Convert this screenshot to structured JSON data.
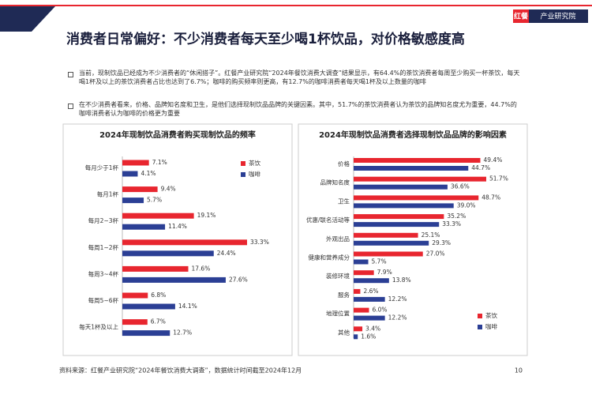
{
  "header": {
    "title": "消费者日常偏好：不少消费者每天至少喝1杯饮品，对价格敏感度高",
    "logo_mark": "红餐",
    "logo_text": "产业研究院"
  },
  "bullets": [
    "当前，现制饮品已经成为不少消费者的“休闲搭子”。红餐产业研究院“2024年餐饮消费大调查”结果显示，有64.4%的茶饮消费者每周至少购买一杯茶饮，每天喝1杯及以上的茶饮消费者占比也达到了6.7%；咖啡的购买频率则更高，有12.7%的咖啡消费者每天喝1杯及以上数量的咖啡",
    "在不少消费者看来，价格、品牌知名度和卫生，是他们选择现制饮品品牌的关键因素。其中，51.7%的茶饮消费者认为茶饮的品牌知名度尤为重要，44.7%的咖啡消费者认为咖啡的价格更为重要"
  ],
  "chart_data": [
    {
      "type": "hbar",
      "title": "2024年现制饮品消费者购买现制饮品的频率",
      "categories": [
        "每月少于1杯",
        "每月1杯",
        "每月2~3杯",
        "每周1~2杯",
        "每周3~4杯",
        "每周5~6杯",
        "每天1杯及以上"
      ],
      "series": [
        {
          "name": "茶饮",
          "color": "#e8262f",
          "values": [
            7.1,
            9.4,
            19.1,
            33.3,
            17.6,
            6.8,
            6.7
          ],
          "value_labels": [
            "7.1%",
            "9.4%",
            "19.1%",
            "33.3%",
            "17.6%",
            "6.8%",
            "6.7%"
          ]
        },
        {
          "name": "咖啡",
          "color": "#2b3f95",
          "values": [
            4.1,
            5.7,
            11.4,
            24.4,
            27.6,
            14.1,
            12.7
          ],
          "value_labels": [
            "4.1%",
            "5.7%",
            "11.4%",
            "24.4%",
            "27.6%",
            "14.1%",
            "12.7%"
          ]
        }
      ],
      "legend": "upper-right"
    },
    {
      "type": "hbar",
      "title": "2024年现制饮品消费者选择现制饮品品牌的影响因素",
      "categories": [
        "价格",
        "品牌知名度",
        "卫生",
        "优惠/联名活动等",
        "外观出品",
        "健康和营养成分",
        "装修环境",
        "服务",
        "地理位置",
        "其他"
      ],
      "series": [
        {
          "name": "茶饮",
          "color": "#e8262f",
          "values": [
            49.4,
            51.7,
            48.7,
            35.2,
            25.1,
            27.0,
            7.9,
            2.6,
            6.0,
            3.4
          ],
          "value_labels": [
            "49.4%",
            "51.7%",
            "48.7%",
            "35.2%",
            "25.1%",
            "27.0%",
            "7.9%",
            "2.6%",
            "6.0%",
            "3.4%"
          ]
        },
        {
          "name": "咖啡",
          "color": "#2b3f95",
          "values": [
            44.7,
            36.6,
            39.0,
            33.3,
            29.3,
            5.7,
            13.8,
            12.2,
            12.2,
            1.6
          ],
          "value_labels": [
            "44.7%",
            "36.6%",
            "39.0%",
            "33.3%",
            "29.3%",
            "5.7%",
            "13.8%",
            "12.2%",
            "12.2%",
            "1.6%"
          ]
        }
      ],
      "legend": "lower-right"
    }
  ],
  "footer": {
    "source": "资料来源：红餐产业研究院“2024年餐饮消费大调查”，数据统计时间截至2024年12月",
    "page": "10"
  }
}
